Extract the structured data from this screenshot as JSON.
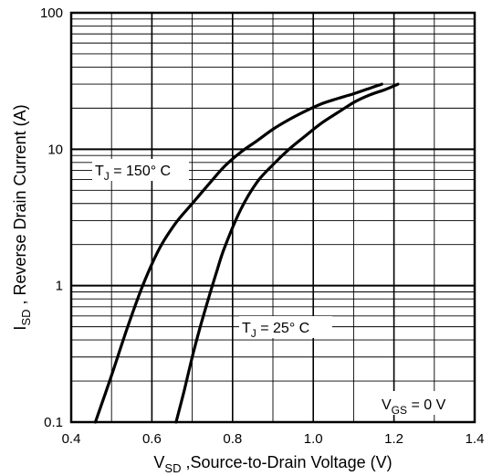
{
  "chart_data": {
    "type": "line",
    "xlabel_main": "V",
    "xlabel_sub": "SD",
    "xlabel_rest": " ,Source-to-Drain Voltage (V)",
    "ylabel_main": "I",
    "ylabel_sub": "SD",
    "ylabel_rest": " , Reverse Drain Current (A)",
    "xlim": [
      0.4,
      1.4
    ],
    "ylim": [
      0.1,
      100
    ],
    "yscale": "log",
    "grid": true,
    "x_ticks": [
      0.4,
      0.6,
      0.8,
      1.0,
      1.2,
      1.4
    ],
    "x_tick_labels": [
      "0.4",
      "0.6",
      "0.8",
      "1.0",
      "1.2",
      "1.4"
    ],
    "y_ticks": [
      0.1,
      1,
      10,
      100
    ],
    "y_tick_labels": [
      "0.1",
      "1",
      "10",
      "100"
    ],
    "series": [
      {
        "name": "TJ = 150°C",
        "label_main": "T",
        "label_sub": "J",
        "label_rest": " = 150° C",
        "x": [
          0.46,
          0.5,
          0.54,
          0.58,
          0.62,
          0.66,
          0.7,
          0.74,
          0.78,
          0.82,
          0.86,
          0.9,
          0.94,
          0.98,
          1.02,
          1.06,
          1.1,
          1.14,
          1.17
        ],
        "y": [
          0.1,
          0.22,
          0.5,
          1.05,
          1.9,
          2.9,
          4.0,
          5.5,
          7.5,
          9.5,
          11.5,
          14,
          16.5,
          19,
          21.5,
          23.5,
          25.5,
          28,
          30
        ]
      },
      {
        "name": "TJ = 25°C",
        "label_main": "T",
        "label_sub": "J",
        "label_rest": " = 25° C",
        "x": [
          0.66,
          0.68,
          0.7,
          0.72,
          0.74,
          0.76,
          0.78,
          0.82,
          0.86,
          0.9,
          0.94,
          0.98,
          1.02,
          1.06,
          1.1,
          1.14,
          1.18,
          1.21
        ],
        "y": [
          0.1,
          0.17,
          0.3,
          0.5,
          0.8,
          1.25,
          1.9,
          3.6,
          5.7,
          7.7,
          10,
          12.5,
          15.5,
          18.5,
          22,
          25,
          27.5,
          30
        ]
      }
    ],
    "annotation_main": "V",
    "annotation_sub": "GS",
    "annotation_rest": " = 0 V"
  }
}
